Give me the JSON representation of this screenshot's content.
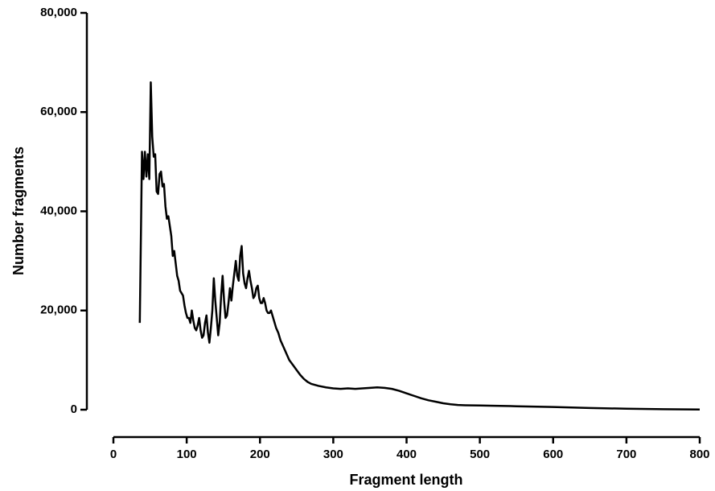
{
  "chart_data": {
    "type": "line",
    "x_label": "Fragment length",
    "y_label": "Number fragments",
    "x": [
      36,
      39,
      41,
      43,
      45,
      47,
      49,
      51,
      53,
      55,
      57,
      59,
      61,
      63,
      65,
      67,
      69,
      71,
      73,
      75,
      77,
      79,
      81,
      83,
      85,
      87,
      89,
      91,
      93,
      95,
      97,
      99,
      101,
      103,
      105,
      107,
      109,
      111,
      113,
      115,
      117,
      119,
      121,
      123,
      125,
      127,
      129,
      131,
      133,
      135,
      137,
      139,
      141,
      143,
      145,
      147,
      149,
      151,
      153,
      155,
      157,
      159,
      161,
      163,
      165,
      167,
      169,
      171,
      173,
      175,
      177,
      179,
      181,
      183,
      185,
      187,
      189,
      191,
      193,
      195,
      197,
      199,
      201,
      203,
      205,
      207,
      209,
      211,
      213,
      215,
      217,
      219,
      222,
      225,
      228,
      231,
      234,
      237,
      240,
      245,
      250,
      255,
      260,
      265,
      270,
      275,
      280,
      290,
      300,
      310,
      320,
      330,
      340,
      350,
      360,
      370,
      380,
      390,
      400,
      410,
      420,
      430,
      440,
      450,
      460,
      470,
      480,
      500,
      520,
      550,
      600,
      650,
      700,
      750,
      800
    ],
    "values": [
      17500,
      52000,
      46500,
      52000,
      47000,
      51500,
      46500,
      66000,
      55000,
      51000,
      51500,
      44000,
      43500,
      47500,
      48000,
      45000,
      45500,
      41000,
      38500,
      39000,
      37000,
      35000,
      31000,
      32000,
      29500,
      27000,
      26000,
      24000,
      23500,
      23000,
      21000,
      19500,
      18500,
      18500,
      17500,
      20000,
      18000,
      16500,
      16000,
      17000,
      18500,
      16000,
      14500,
      15000,
      17500,
      19000,
      15500,
      13500,
      16500,
      20000,
      26500,
      22000,
      18500,
      15000,
      17500,
      23000,
      27000,
      22000,
      18500,
      19000,
      21500,
      24500,
      22000,
      25000,
      27500,
      30000,
      27000,
      26000,
      31000,
      33000,
      27500,
      25500,
      24500,
      26500,
      28000,
      26000,
      24500,
      22500,
      23000,
      24500,
      25000,
      22500,
      21500,
      21500,
      22500,
      21500,
      20000,
      19500,
      19500,
      20000,
      19000,
      18000,
      16500,
      15500,
      14000,
      13000,
      12000,
      11000,
      10000,
      9000,
      8000,
      7000,
      6200,
      5600,
      5200,
      5000,
      4800,
      4500,
      4300,
      4200,
      4300,
      4200,
      4300,
      4400,
      4500,
      4400,
      4200,
      3800,
      3300,
      2800,
      2300,
      1900,
      1600,
      1300,
      1100,
      950,
      900,
      850,
      800,
      700,
      550,
      350,
      200,
      100,
      50
    ],
    "color": "#000000",
    "xlim": [
      0,
      800
    ],
    "xticks": [
      0,
      100,
      200,
      300,
      400,
      500,
      600,
      700,
      800
    ],
    "ylim": [
      0,
      80000
    ],
    "yticks": [
      0,
      {
        "value": 20000,
        "label": "20,000"
      },
      {
        "value": 40000,
        "label": "40,000"
      },
      {
        "value": 60000,
        "label": "60,000"
      },
      {
        "value": 80000,
        "label": "80,000"
      }
    ]
  }
}
